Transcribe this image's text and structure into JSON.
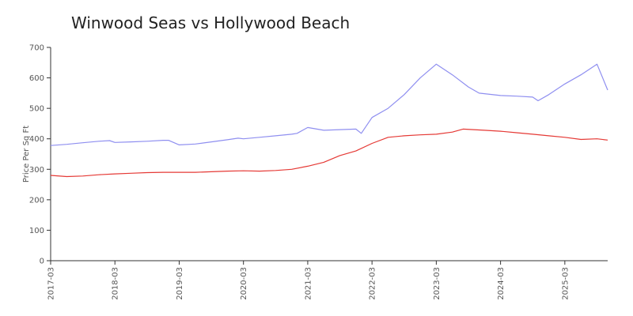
{
  "chart_data": {
    "type": "line",
    "title": "Winwood Seas vs Hollywood Beach",
    "xlabel": "",
    "ylabel": "Price Per Sq Ft",
    "ylim": [
      0,
      700
    ],
    "y_ticks": [
      0,
      100,
      200,
      300,
      400,
      500,
      600,
      700
    ],
    "x_ticks": [
      "2017-03",
      "2018-03",
      "2019-03",
      "2020-03",
      "2021-03",
      "2022-03",
      "2023-03",
      "2024-03",
      "2025-03"
    ],
    "x_domain": [
      "2017-03",
      "2025-11"
    ],
    "grid": false,
    "series": [
      {
        "color": "#8f8ff0",
        "points": [
          [
            "2017-03",
            378
          ],
          [
            "2017-06",
            382
          ],
          [
            "2017-09",
            387
          ],
          [
            "2017-12",
            392
          ],
          [
            "2018-02",
            394
          ],
          [
            "2018-03",
            388
          ],
          [
            "2018-06",
            390
          ],
          [
            "2018-09",
            392
          ],
          [
            "2018-12",
            395
          ],
          [
            "2019-01",
            395
          ],
          [
            "2019-03",
            380
          ],
          [
            "2019-06",
            383
          ],
          [
            "2019-09",
            390
          ],
          [
            "2019-12",
            397
          ],
          [
            "2020-02",
            402
          ],
          [
            "2020-03",
            400
          ],
          [
            "2020-06",
            405
          ],
          [
            "2020-09",
            410
          ],
          [
            "2020-12",
            415
          ],
          [
            "2021-01",
            418
          ],
          [
            "2021-03",
            437
          ],
          [
            "2021-06",
            428
          ],
          [
            "2021-09",
            430
          ],
          [
            "2021-12",
            432
          ],
          [
            "2022-01",
            418
          ],
          [
            "2022-03",
            470
          ],
          [
            "2022-06",
            500
          ],
          [
            "2022-09",
            545
          ],
          [
            "2022-12",
            600
          ],
          [
            "2023-03",
            645
          ],
          [
            "2023-06",
            610
          ],
          [
            "2023-09",
            570
          ],
          [
            "2023-11",
            550
          ],
          [
            "2024-03",
            542
          ],
          [
            "2024-06",
            540
          ],
          [
            "2024-09",
            537
          ],
          [
            "2024-10",
            525
          ],
          [
            "2024-12",
            545
          ],
          [
            "2025-03",
            580
          ],
          [
            "2025-06",
            610
          ],
          [
            "2025-09",
            645
          ],
          [
            "2025-11",
            560
          ]
        ]
      },
      {
        "color": "#e53935",
        "points": [
          [
            "2017-03",
            280
          ],
          [
            "2017-06",
            276
          ],
          [
            "2017-09",
            278
          ],
          [
            "2017-12",
            282
          ],
          [
            "2018-03",
            285
          ],
          [
            "2018-06",
            287
          ],
          [
            "2018-09",
            289
          ],
          [
            "2018-12",
            290
          ],
          [
            "2019-03",
            290
          ],
          [
            "2019-06",
            290
          ],
          [
            "2019-09",
            292
          ],
          [
            "2019-12",
            294
          ],
          [
            "2020-03",
            295
          ],
          [
            "2020-06",
            294
          ],
          [
            "2020-09",
            296
          ],
          [
            "2020-12",
            300
          ],
          [
            "2021-03",
            310
          ],
          [
            "2021-06",
            323
          ],
          [
            "2021-09",
            345
          ],
          [
            "2021-12",
            360
          ],
          [
            "2022-03",
            385
          ],
          [
            "2022-06",
            405
          ],
          [
            "2022-09",
            410
          ],
          [
            "2022-12",
            413
          ],
          [
            "2023-03",
            415
          ],
          [
            "2023-06",
            422
          ],
          [
            "2023-08",
            432
          ],
          [
            "2023-12",
            428
          ],
          [
            "2024-03",
            425
          ],
          [
            "2024-06",
            420
          ],
          [
            "2024-09",
            415
          ],
          [
            "2024-12",
            410
          ],
          [
            "2025-03",
            405
          ],
          [
            "2025-06",
            398
          ],
          [
            "2025-09",
            400
          ],
          [
            "2025-11",
            396
          ]
        ]
      }
    ]
  }
}
